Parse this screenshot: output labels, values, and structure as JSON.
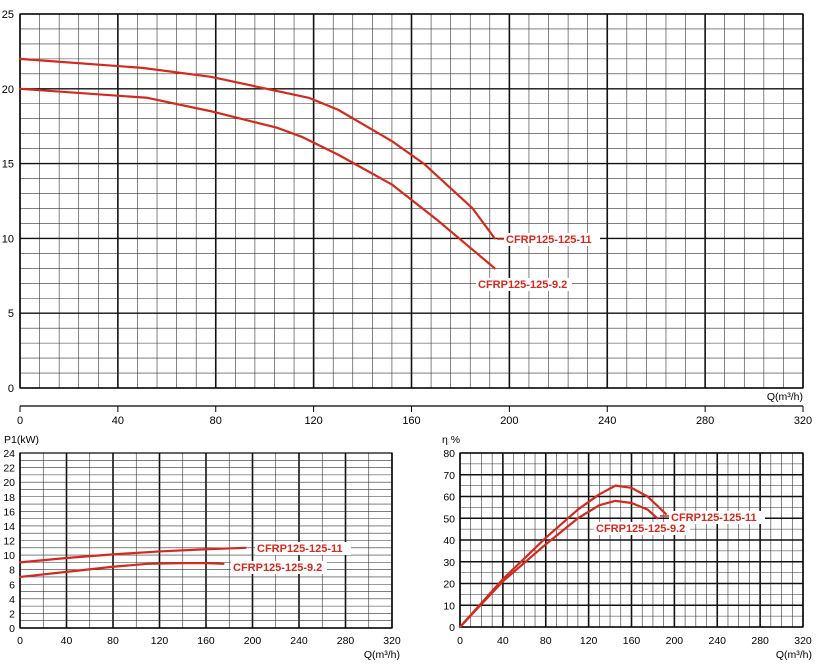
{
  "colors": {
    "curve": "#d42a1e",
    "grid_minor": "#333333",
    "grid_major": "#111111",
    "text": "#000000"
  },
  "chart_data": [
    {
      "type": "line",
      "panel": "head",
      "xlabel": "Q(m³/h)",
      "ylabel": "",
      "xlim": [
        0,
        320
      ],
      "ylim": [
        0,
        25
      ],
      "xticks": [
        0,
        40,
        80,
        120,
        160,
        200,
        240,
        280,
        320
      ],
      "yticks": [
        0,
        5,
        10,
        15,
        20,
        25
      ],
      "grid": true,
      "series": [
        {
          "name": "CFRP125-125-11",
          "x": [
            0,
            50,
            78,
            118,
            130,
            152,
            165,
            185,
            194
          ],
          "y": [
            22,
            21.4,
            20.8,
            19.4,
            18.6,
            16.5,
            15,
            12,
            10
          ]
        },
        {
          "name": "CFRP125-125-9.2",
          "x": [
            0,
            52,
            78,
            105,
            115,
            130,
            152,
            170,
            194
          ],
          "y": [
            20,
            19.4,
            18.5,
            17.4,
            16.8,
            15.6,
            13.6,
            11.3,
            8
          ]
        }
      ]
    },
    {
      "type": "line",
      "panel": "power",
      "xlabel": "Q(m³/h)",
      "ylabel": "P1(kW)",
      "xlim": [
        0,
        320
      ],
      "ylim": [
        0,
        24
      ],
      "xticks": [
        0,
        40,
        80,
        120,
        160,
        200,
        240,
        280,
        320
      ],
      "yticks": [
        0,
        2,
        4,
        6,
        8,
        10,
        12,
        14,
        16,
        18,
        20,
        22,
        24
      ],
      "grid": true,
      "series": [
        {
          "name": "CFRP125-125-11",
          "x": [
            0,
            40,
            80,
            120,
            160,
            194
          ],
          "y": [
            9,
            9.6,
            10.1,
            10.5,
            10.8,
            11
          ]
        },
        {
          "name": "CFRP125-125-9.2",
          "x": [
            0,
            40,
            80,
            110,
            140,
            160,
            175
          ],
          "y": [
            7,
            7.7,
            8.4,
            8.8,
            8.9,
            8.9,
            8.8
          ]
        }
      ]
    },
    {
      "type": "line",
      "panel": "efficiency",
      "xlabel": "Q(m³/h)",
      "ylabel": "η %",
      "xlim": [
        0,
        320
      ],
      "ylim": [
        0,
        80
      ],
      "xticks": [
        0,
        40,
        80,
        120,
        160,
        200,
        240,
        280,
        320
      ],
      "yticks": [
        0,
        10,
        20,
        30,
        40,
        50,
        60,
        70,
        80
      ],
      "grid": true,
      "series": [
        {
          "name": "CFRP125-125-11",
          "x": [
            0,
            40,
            80,
            110,
            130,
            145,
            160,
            175,
            192
          ],
          "y": [
            0,
            22,
            41,
            54,
            61,
            65,
            64,
            60,
            52
          ]
        },
        {
          "name": "CFRP125-125-9.2",
          "x": [
            0,
            40,
            80,
            110,
            130,
            145,
            160,
            175,
            184
          ],
          "y": [
            0,
            21,
            38,
            50,
            56,
            58,
            57,
            54,
            50
          ]
        }
      ]
    }
  ],
  "labels": {
    "head_11": "CFRP125-125-11",
    "head_92": "CFRP125-125-9.2",
    "power_11": "CFRP125-125-11",
    "power_92": "CFRP125-125-9.2",
    "eff_11": "CFRP125-125-11",
    "eff_92": "CFRP125-125-9.2"
  }
}
